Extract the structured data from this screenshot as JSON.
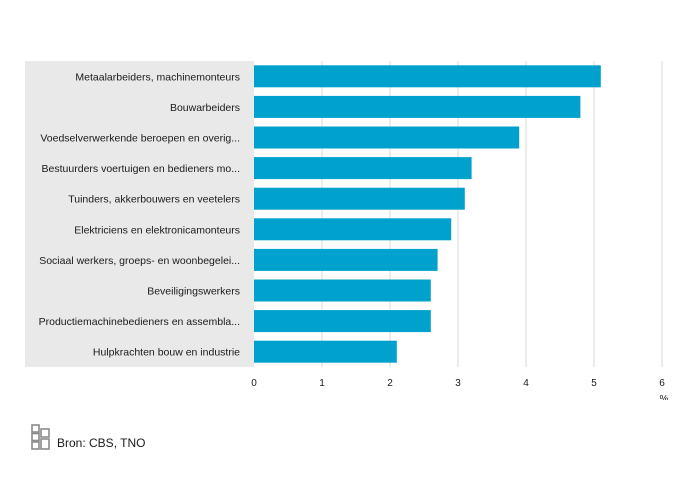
{
  "chart_data": {
    "type": "bar",
    "orientation": "horizontal",
    "categories": [
      "Metaalarbeiders, machinemonteurs",
      "Bouwarbeiders",
      "Voedselverwerkende beroepen en overig...",
      "Bestuurders voertuigen en bedieners mo...",
      "Tuinders, akkerbouwers en veetelers",
      "Elektriciens en elektronicamonteurs",
      "Sociaal werkers, groeps- en woonbegelei...",
      "Beveiligingswerkers",
      "Productiemachinebedieners en assembla...",
      "Hulpkrachten bouw en industrie"
    ],
    "values": [
      5.1,
      4.8,
      3.9,
      3.2,
      3.1,
      2.9,
      2.7,
      2.6,
      2.6,
      2.1
    ],
    "xlim": [
      0,
      6
    ],
    "xticks": [
      "0",
      "1",
      "2",
      "3",
      "4",
      "5",
      "6"
    ],
    "unit": "%",
    "grid": true,
    "colors": {
      "bar": "#00a1cd",
      "label_panel": "#e9e9e9",
      "gridline": "#d9d9d9"
    }
  },
  "footer": {
    "logo_icon": "cbs-logo-icon",
    "source": "Bron: CBS, TNO"
  }
}
